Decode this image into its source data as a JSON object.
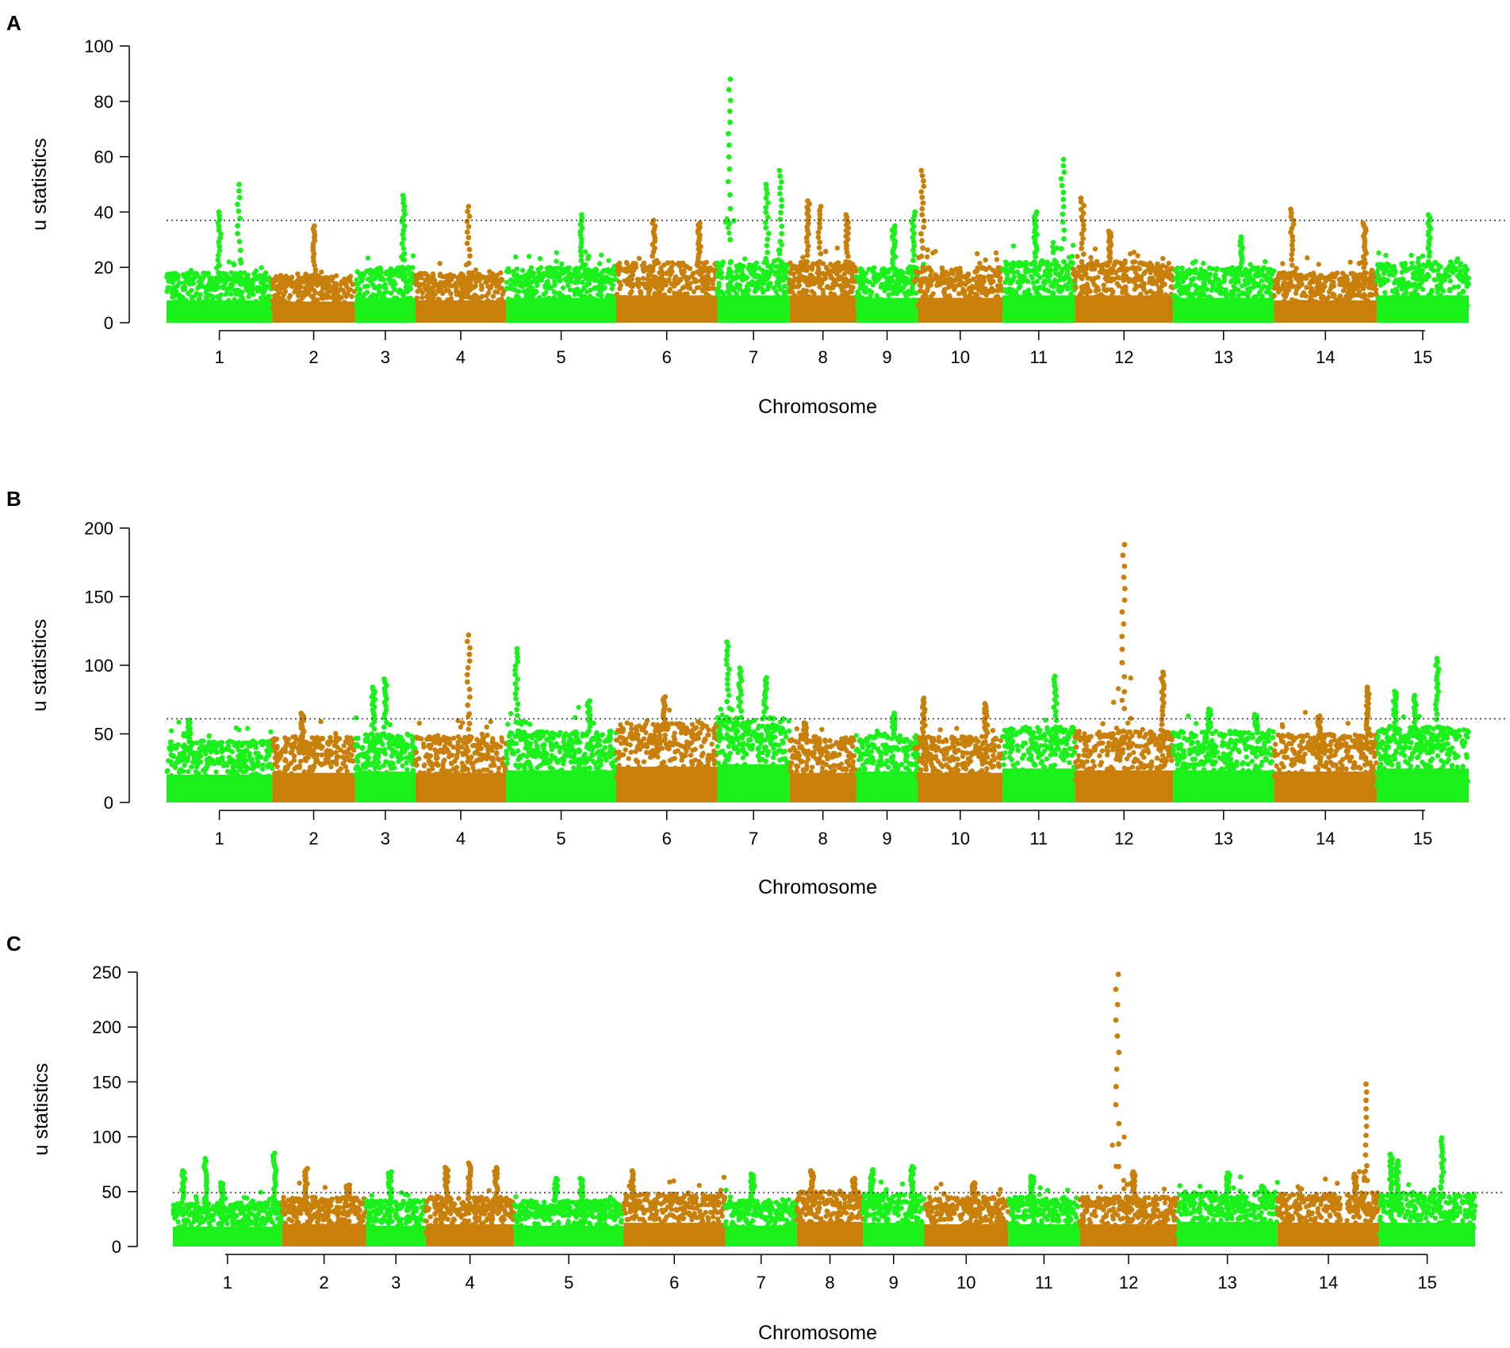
{
  "colors": {
    "green": "#1AF01A",
    "orange": "#C8800A"
  },
  "chart_data": [
    {
      "type": "scatter",
      "panel": "A",
      "title": "",
      "xlabel": "Chromosome",
      "ylabel": "u statistics",
      "ylim": [
        0,
        100
      ],
      "yticks": [
        "0",
        "20",
        "40",
        "60",
        "80",
        "100"
      ],
      "ytick_values": [
        0,
        20,
        40,
        60,
        80,
        100
      ],
      "threshold": 37,
      "chromosomes": [
        {
          "label": "1",
          "start": 0,
          "end": 7,
          "base": 18,
          "peaks": [
            [
              3.5,
              40
            ],
            [
              4.8,
              50
            ]
          ]
        },
        {
          "label": "2",
          "start": 7,
          "end": 12.5,
          "base": 17,
          "peaks": [
            [
              2.8,
              35
            ]
          ]
        },
        {
          "label": "3",
          "start": 12.5,
          "end": 16.5,
          "base": 20,
          "peaks": [
            [
              3.2,
              46
            ]
          ]
        },
        {
          "label": "4",
          "start": 16.5,
          "end": 22.5,
          "base": 18,
          "peaks": [
            [
              3.5,
              42
            ]
          ]
        },
        {
          "label": "5",
          "start": 22.5,
          "end": 29.8,
          "base": 20,
          "peaks": [
            [
              5.0,
              39
            ]
          ]
        },
        {
          "label": "6",
          "start": 29.8,
          "end": 36.5,
          "base": 22,
          "peaks": [
            [
              2.5,
              37
            ],
            [
              5.5,
              36
            ]
          ]
        },
        {
          "label": "7",
          "start": 36.5,
          "end": 41.3,
          "base": 22,
          "peaks": [
            [
              0.8,
              88
            ],
            [
              3.3,
              50
            ],
            [
              4.2,
              55
            ]
          ]
        },
        {
          "label": "8",
          "start": 41.3,
          "end": 45.7,
          "base": 22,
          "peaks": [
            [
              1.2,
              44
            ],
            [
              2.0,
              42
            ],
            [
              3.8,
              39
            ]
          ]
        },
        {
          "label": "9",
          "start": 45.7,
          "end": 49.8,
          "base": 20,
          "peaks": [
            [
              2.5,
              35
            ],
            [
              3.8,
              40
            ]
          ]
        },
        {
          "label": "10",
          "start": 49.8,
          "end": 55.4,
          "base": 20,
          "peaks": [
            [
              0.3,
              55
            ]
          ]
        },
        {
          "label": "11",
          "start": 55.4,
          "end": 60.2,
          "base": 22,
          "peaks": [
            [
              2.2,
              40
            ],
            [
              4.0,
              59
            ]
          ]
        },
        {
          "label": "12",
          "start": 60.2,
          "end": 66.7,
          "base": 22,
          "peaks": [
            [
              0.5,
              45
            ],
            [
              2.3,
              33
            ]
          ]
        },
        {
          "label": "13",
          "start": 66.7,
          "end": 73.4,
          "base": 20,
          "peaks": [
            [
              4.5,
              31
            ]
          ]
        },
        {
          "label": "14",
          "start": 73.4,
          "end": 80.2,
          "base": 18,
          "peaks": [
            [
              1.2,
              41
            ],
            [
              6.0,
              36
            ]
          ]
        },
        {
          "label": "15",
          "start": 80.2,
          "end": 86.3,
          "base": 22,
          "peaks": [
            [
              3.5,
              39
            ]
          ]
        }
      ]
    },
    {
      "type": "scatter",
      "panel": "B",
      "title": "",
      "xlabel": "Chromosome",
      "ylabel": "u statistics",
      "ylim": [
        0,
        200
      ],
      "yticks": [
        "0",
        "50",
        "100",
        "150",
        "200"
      ],
      "ytick_values": [
        0,
        50,
        100,
        150,
        200
      ],
      "threshold": 61,
      "chromosomes": [
        {
          "label": "1",
          "start": 0,
          "end": 7,
          "base": 45,
          "peaks": [
            [
              1.5,
              60
            ]
          ]
        },
        {
          "label": "2",
          "start": 7,
          "end": 12.5,
          "base": 48,
          "peaks": [
            [
              2.0,
              65
            ]
          ]
        },
        {
          "label": "3",
          "start": 12.5,
          "end": 16.5,
          "base": 50,
          "peaks": [
            [
              1.2,
              84
            ],
            [
              2.0,
              90
            ]
          ]
        },
        {
          "label": "4",
          "start": 16.5,
          "end": 22.5,
          "base": 48,
          "peaks": [
            [
              3.5,
              122
            ]
          ]
        },
        {
          "label": "5",
          "start": 22.5,
          "end": 29.8,
          "base": 52,
          "peaks": [
            [
              0.7,
              112
            ],
            [
              5.5,
              74
            ]
          ]
        },
        {
          "label": "6",
          "start": 29.8,
          "end": 36.5,
          "base": 58,
          "peaks": [
            [
              3.2,
              77
            ]
          ]
        },
        {
          "label": "7",
          "start": 36.5,
          "end": 41.3,
          "base": 62,
          "peaks": [
            [
              0.7,
              117
            ],
            [
              1.5,
              98
            ],
            [
              3.2,
              91
            ]
          ]
        },
        {
          "label": "8",
          "start": 41.3,
          "end": 45.7,
          "base": 48,
          "peaks": [
            [
              1.0,
              58
            ]
          ]
        },
        {
          "label": "9",
          "start": 45.7,
          "end": 49.8,
          "base": 50,
          "peaks": [
            [
              2.5,
              65
            ]
          ]
        },
        {
          "label": "10",
          "start": 49.8,
          "end": 55.4,
          "base": 48,
          "peaks": [
            [
              0.4,
              76
            ],
            [
              4.5,
              72
            ]
          ]
        },
        {
          "label": "11",
          "start": 55.4,
          "end": 60.2,
          "base": 55,
          "peaks": [
            [
              3.5,
              92
            ]
          ]
        },
        {
          "label": "12",
          "start": 60.2,
          "end": 66.7,
          "base": 52,
          "peaks": [
            [
              3.2,
              188
            ],
            [
              5.8,
              95
            ]
          ]
        },
        {
          "label": "13",
          "start": 66.7,
          "end": 73.4,
          "base": 52,
          "peaks": [
            [
              2.4,
              68
            ],
            [
              5.5,
              64
            ]
          ]
        },
        {
          "label": "14",
          "start": 73.4,
          "end": 80.2,
          "base": 50,
          "peaks": [
            [
              3.0,
              63
            ],
            [
              6.2,
              84
            ]
          ]
        },
        {
          "label": "15",
          "start": 80.2,
          "end": 86.3,
          "base": 55,
          "peaks": [
            [
              1.2,
              81
            ],
            [
              2.5,
              78
            ],
            [
              4.0,
              105
            ]
          ]
        }
      ]
    },
    {
      "type": "scatter",
      "panel": "C",
      "title": "",
      "xlabel": "Chromosome",
      "ylabel": "u statistics",
      "ylim": [
        0,
        250
      ],
      "yticks": [
        "0",
        "50",
        "100",
        "150",
        "200",
        "250"
      ],
      "ytick_values": [
        0,
        50,
        100,
        150,
        200,
        250
      ],
      "threshold": 49,
      "chromosomes": [
        {
          "label": "1",
          "start": 0,
          "end": 7.3,
          "base": 40,
          "peaks": [
            [
              0.7,
              69
            ],
            [
              2.2,
              80
            ],
            [
              3.3,
              58
            ],
            [
              6.8,
              85
            ]
          ]
        },
        {
          "label": "2",
          "start": 7.3,
          "end": 12.9,
          "base": 45,
          "peaks": [
            [
              1.6,
              71
            ],
            [
              4.4,
              56
            ]
          ]
        },
        {
          "label": "3",
          "start": 12.9,
          "end": 16.9,
          "base": 42,
          "peaks": [
            [
              1.6,
              68
            ]
          ]
        },
        {
          "label": "4",
          "start": 16.9,
          "end": 22.8,
          "base": 45,
          "peaks": [
            [
              1.4,
              72
            ],
            [
              2.9,
              76
            ],
            [
              4.7,
              72
            ]
          ]
        },
        {
          "label": "5",
          "start": 22.8,
          "end": 30.1,
          "base": 42,
          "peaks": [
            [
              2.8,
              62
            ],
            [
              4.5,
              62
            ]
          ]
        },
        {
          "label": "6",
          "start": 30.1,
          "end": 36.9,
          "base": 48,
          "peaks": [
            [
              0.6,
              69
            ]
          ]
        },
        {
          "label": "7",
          "start": 36.9,
          "end": 41.7,
          "base": 42,
          "peaks": [
            [
              1.8,
              66
            ]
          ]
        },
        {
          "label": "8",
          "start": 41.7,
          "end": 46.1,
          "base": 50,
          "peaks": [
            [
              1.0,
              69
            ],
            [
              3.8,
              62
            ]
          ]
        },
        {
          "label": "9",
          "start": 46.1,
          "end": 50.2,
          "base": 48,
          "peaks": [
            [
              0.6,
              70
            ],
            [
              3.3,
              73
            ]
          ]
        },
        {
          "label": "10",
          "start": 50.2,
          "end": 55.8,
          "base": 45,
          "peaks": [
            [
              3.3,
              58
            ]
          ]
        },
        {
          "label": "11",
          "start": 55.8,
          "end": 60.6,
          "base": 45,
          "peaks": [
            [
              1.6,
              64
            ]
          ]
        },
        {
          "label": "12",
          "start": 60.6,
          "end": 67.1,
          "base": 45,
          "peaks": [
            [
              2.5,
              248
            ],
            [
              3.6,
              68
            ]
          ]
        },
        {
          "label": "13",
          "start": 67.1,
          "end": 73.8,
          "base": 50,
          "peaks": [
            [
              3.4,
              67
            ],
            [
              5.7,
              55
            ]
          ]
        },
        {
          "label": "14",
          "start": 73.8,
          "end": 80.6,
          "base": 48,
          "peaks": [
            [
              5.2,
              66
            ],
            [
              5.9,
              148
            ]
          ]
        },
        {
          "label": "15",
          "start": 80.6,
          "end": 87.0,
          "base": 48,
          "peaks": [
            [
              0.8,
              84
            ],
            [
              1.2,
              78
            ],
            [
              4.2,
              99
            ]
          ]
        }
      ]
    }
  ]
}
